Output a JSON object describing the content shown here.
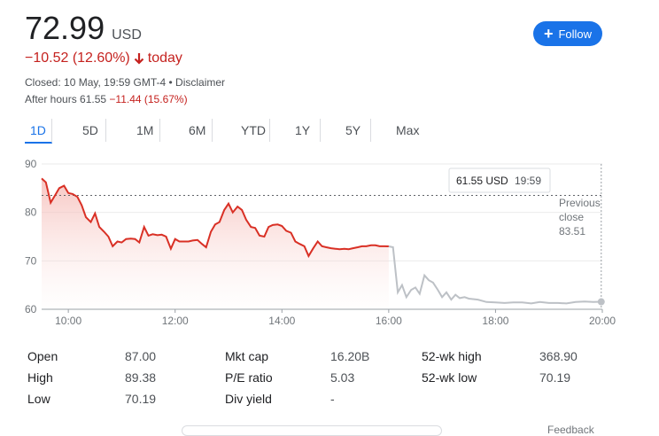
{
  "header": {
    "price": "72.99",
    "currency": "USD",
    "change": "−10.52 (12.60%)",
    "change_period": "today",
    "closed_text": "Closed: 10 May, 19:59 GMT-4 • Disclaimer",
    "after_hours_label": "After hours 61.55",
    "after_hours_change": "−11.44 (15.67%)"
  },
  "follow_button": {
    "label": "Follow",
    "icon": "plus-icon"
  },
  "tabs": [
    {
      "label": "1D",
      "active": true
    },
    {
      "label": "5D"
    },
    {
      "label": "1M"
    },
    {
      "label": "6M"
    },
    {
      "label": "YTD"
    },
    {
      "label": "1Y"
    },
    {
      "label": "5Y"
    },
    {
      "label": "Max"
    }
  ],
  "tooltip": {
    "price": "61.55 USD",
    "time": "19:59"
  },
  "previous_close": {
    "label_line1": "Previous",
    "label_line2": "close",
    "value": "83.51"
  },
  "colors": {
    "accent": "#1a73e8",
    "negative": "#c5221f",
    "after_hours_line": "#bdc1c6"
  },
  "chart_data": {
    "type": "line",
    "ylim": [
      60,
      90
    ],
    "xlim": [
      9.5,
      20.0
    ],
    "yticks": [
      90,
      80,
      70,
      60
    ],
    "xticks": [
      "10:00",
      "12:00",
      "14:00",
      "16:00",
      "18:00",
      "20:00"
    ],
    "xtick_values": [
      10,
      12,
      14,
      16,
      18,
      20
    ],
    "previous_close": 83.51,
    "series": [
      {
        "session": "regular",
        "x": [
          9.5,
          9.58,
          9.67,
          9.75,
          9.83,
          9.92,
          10.0,
          10.08,
          10.17,
          10.25,
          10.33,
          10.42,
          10.5,
          10.58,
          10.67,
          10.75,
          10.83,
          10.92,
          11.0,
          11.08,
          11.17,
          11.25,
          11.33,
          11.42,
          11.5,
          11.58,
          11.67,
          11.75,
          11.83,
          11.92,
          12.0,
          12.08,
          12.17,
          12.25,
          12.33,
          12.42,
          12.5,
          12.58,
          12.67,
          12.75,
          12.83,
          12.92,
          13.0,
          13.08,
          13.17,
          13.25,
          13.33,
          13.42,
          13.5,
          13.58,
          13.67,
          13.75,
          13.83,
          13.92,
          14.0,
          14.08,
          14.17,
          14.25,
          14.33,
          14.42,
          14.5,
          14.58,
          14.67,
          14.75,
          14.83,
          14.92,
          15.0,
          15.08,
          15.17,
          15.25,
          15.33,
          15.42,
          15.5,
          15.58,
          15.67,
          15.75,
          15.83,
          15.92,
          16.0
        ],
        "y": [
          87.0,
          86.2,
          82.0,
          83.5,
          85.0,
          85.5,
          84.0,
          83.8,
          83.2,
          81.5,
          79.0,
          78.0,
          79.8,
          77.0,
          76.0,
          75.0,
          73.0,
          74.0,
          73.8,
          74.5,
          74.6,
          74.5,
          73.8,
          77.0,
          75.2,
          75.5,
          75.3,
          75.4,
          75.0,
          72.5,
          74.5,
          74.0,
          74.0,
          74.0,
          74.2,
          74.3,
          73.5,
          72.8,
          76.0,
          77.5,
          78.0,
          80.5,
          81.8,
          80.0,
          81.2,
          80.5,
          78.5,
          77.0,
          76.8,
          75.2,
          75.0,
          77.0,
          77.4,
          77.5,
          77.2,
          76.2,
          75.8,
          74.0,
          73.5,
          73.0,
          71.0,
          72.5,
          74.0,
          73.0,
          72.8,
          72.6,
          72.5,
          72.4,
          72.5,
          72.4,
          72.6,
          72.8,
          73.0,
          73.0,
          73.2,
          73.2,
          73.0,
          73.0,
          72.99
        ]
      },
      {
        "session": "after_hours",
        "x": [
          16.0,
          16.08,
          16.17,
          16.25,
          16.33,
          16.42,
          16.5,
          16.58,
          16.67,
          16.75,
          16.83,
          16.92,
          17.0,
          17.08,
          17.17,
          17.25,
          17.33,
          17.42,
          17.5,
          17.67,
          17.83,
          18.0,
          18.17,
          18.33,
          18.5,
          18.67,
          18.83,
          19.0,
          19.17,
          19.33,
          19.5,
          19.67,
          19.83,
          19.98
        ],
        "y": [
          72.99,
          72.8,
          63.5,
          65.0,
          62.5,
          64.0,
          64.5,
          63.2,
          67.0,
          66.0,
          65.5,
          64.0,
          62.5,
          63.5,
          62.0,
          63.0,
          62.3,
          62.5,
          62.2,
          62.0,
          61.5,
          61.4,
          61.3,
          61.4,
          61.4,
          61.2,
          61.5,
          61.3,
          61.3,
          61.2,
          61.5,
          61.6,
          61.5,
          61.55
        ]
      }
    ]
  },
  "stats": [
    {
      "label": "Open",
      "value": "87.00"
    },
    {
      "label": "High",
      "value": "89.38"
    },
    {
      "label": "Low",
      "value": "70.19"
    },
    {
      "label": "Mkt cap",
      "value": "16.20B"
    },
    {
      "label": "P/E ratio",
      "value": "5.03"
    },
    {
      "label": "Div yield",
      "value": "-"
    },
    {
      "label": "52-wk high",
      "value": "368.90"
    },
    {
      "label": "52-wk low",
      "value": "70.19"
    }
  ],
  "feedback": "Feedback"
}
